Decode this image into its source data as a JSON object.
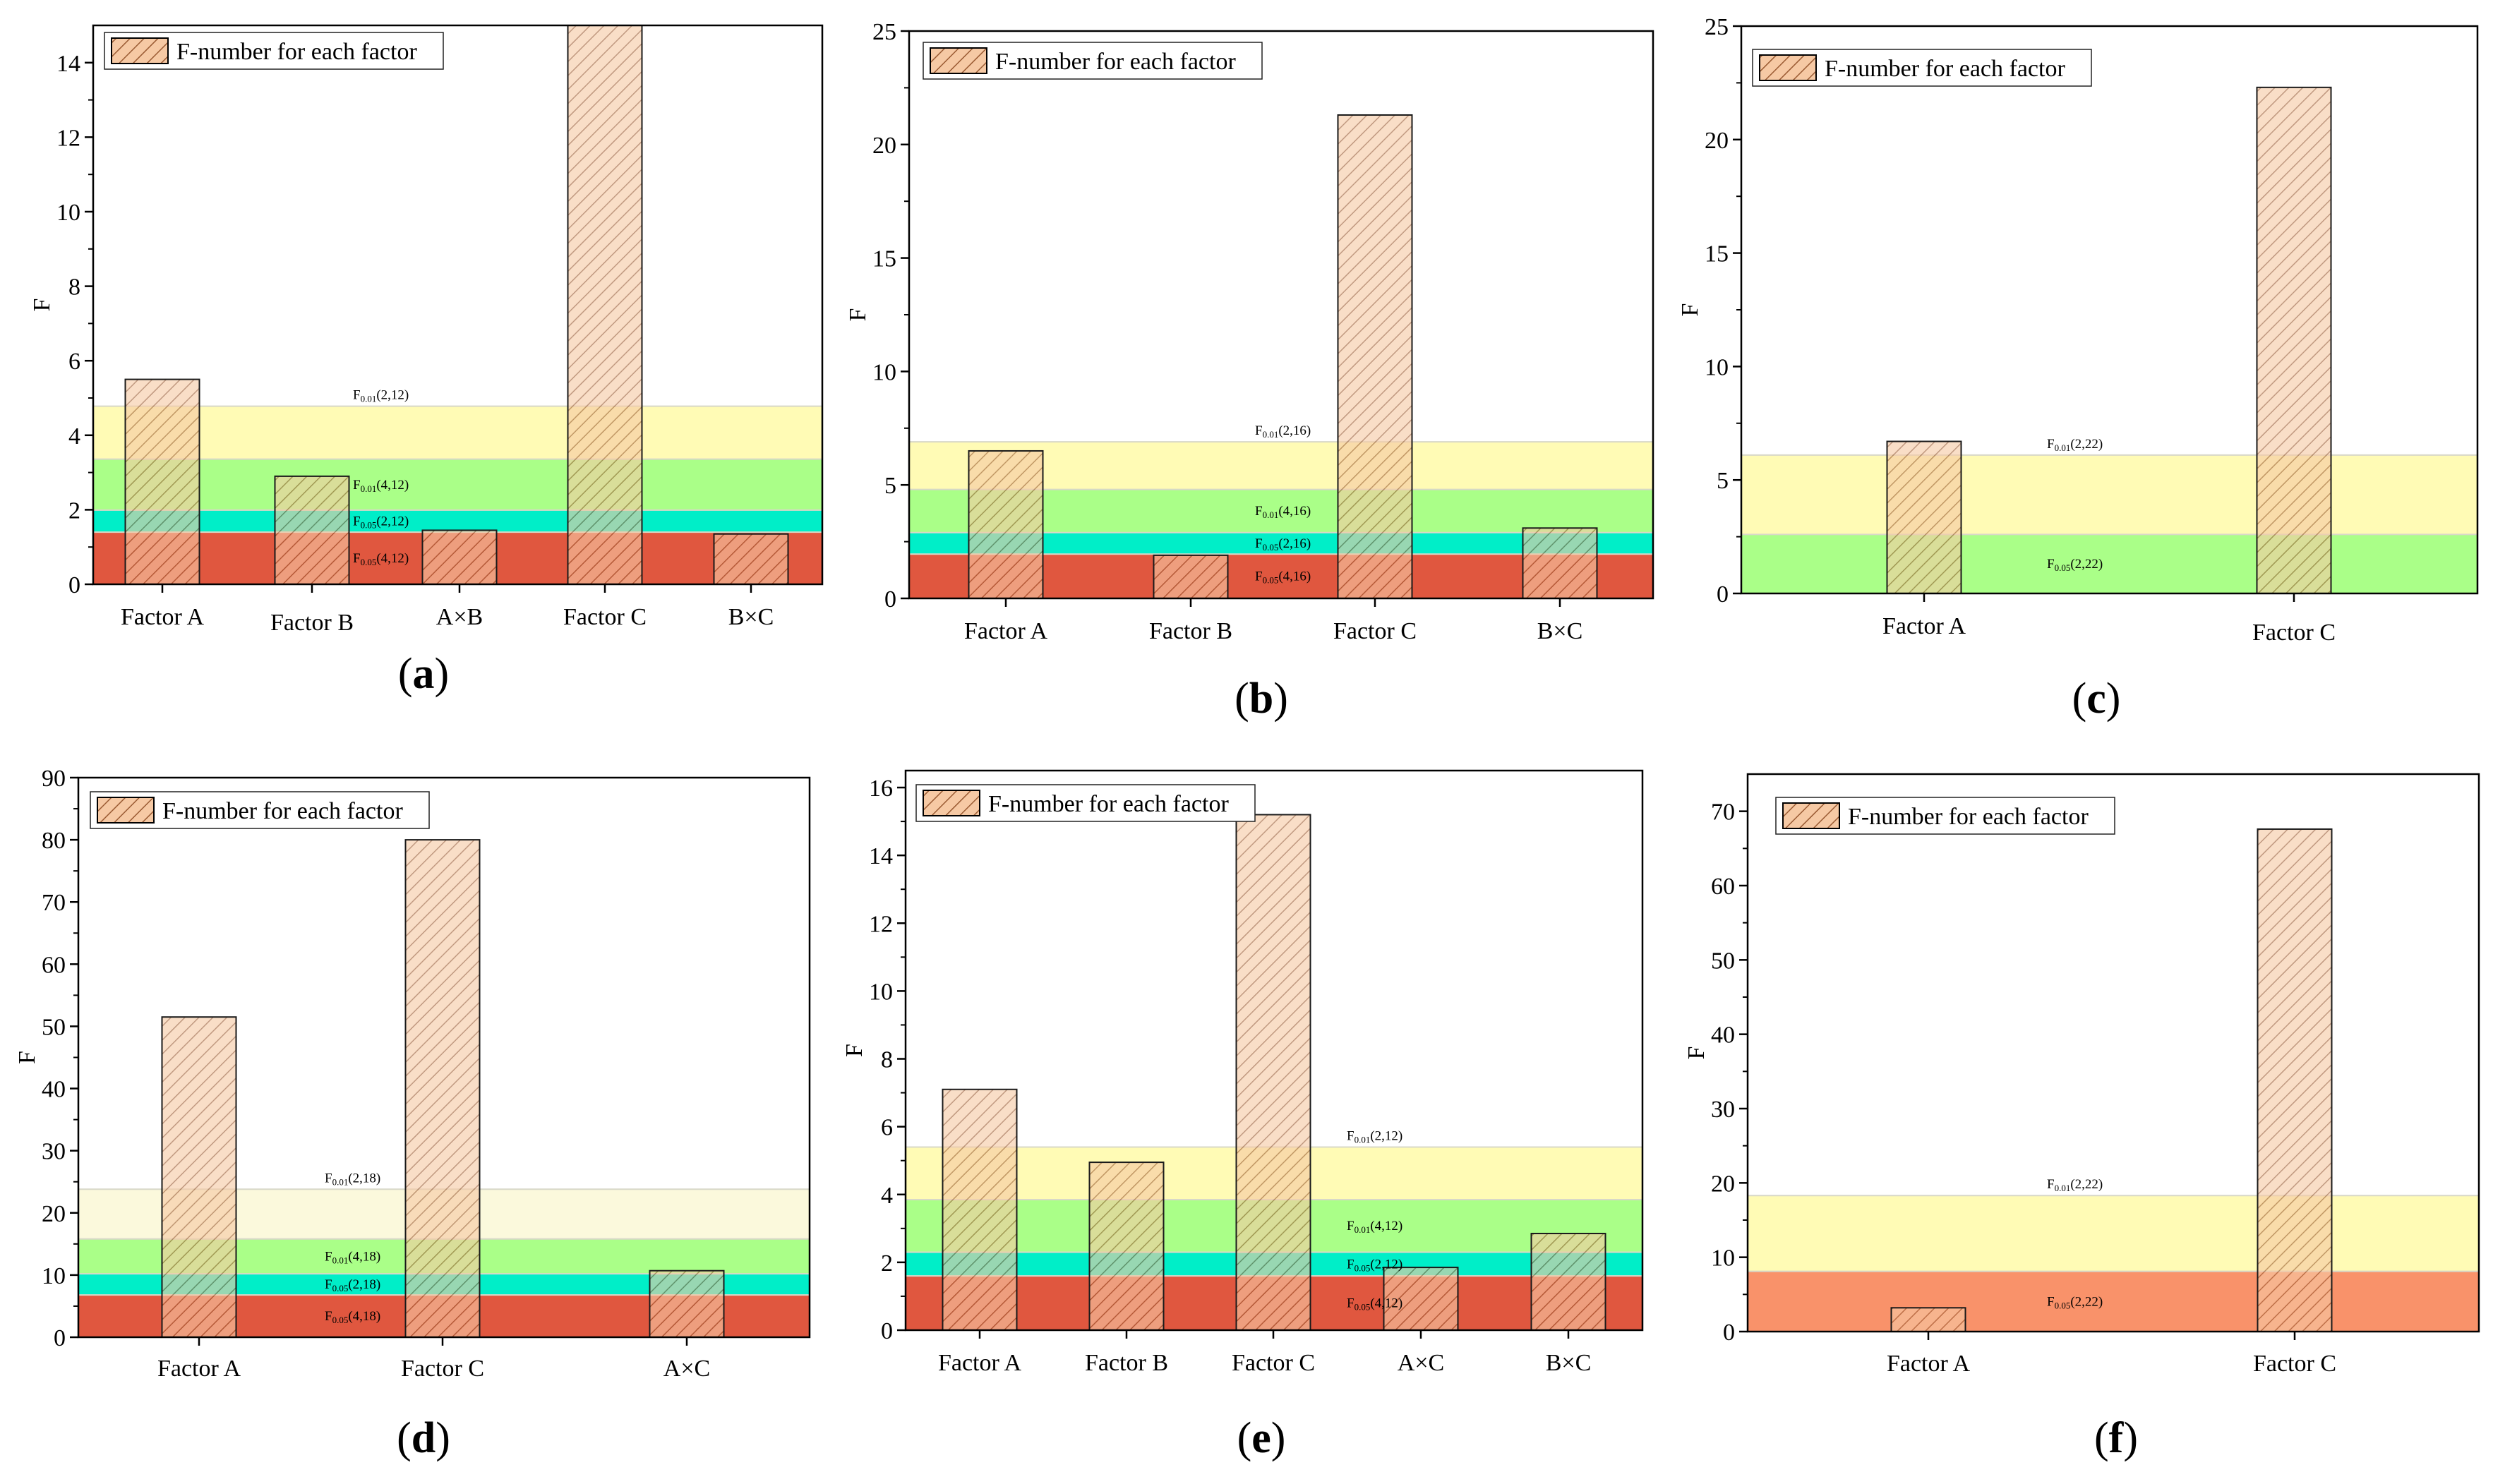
{
  "legend_label": "F-number for each factor",
  "colors": {
    "bar_fill": "#f6c9a4",
    "bar_stroke": "#1a1a1a",
    "hatch": "#a0522d",
    "band_top": "#fffbb5",
    "band_mid": "#aaff88",
    "band_teal": "#00eec8",
    "band_red": "#e0573f",
    "band_red_f": "#f9926a"
  },
  "chart_data": [
    {
      "type": "bar",
      "panel_label": "a",
      "ylabel": "F",
      "ylim": [
        0,
        15
      ],
      "yticks": [
        0,
        2,
        4,
        6,
        8,
        10,
        12,
        14
      ],
      "categories": [
        "Factor A",
        "Factor B",
        "A×B",
        "Factor C",
        "B×C"
      ],
      "values": [
        5.5,
        2.9,
        1.45,
        15.0,
        1.35
      ],
      "thresholds": [
        {
          "label": "F",
          "sub": "0.01",
          "args": "(2,12)",
          "value": 4.78
        },
        {
          "label": "F",
          "sub": "0.01",
          "args": "(4,12)",
          "value": 3.36
        },
        {
          "label": "F",
          "sub": "0.05",
          "args": "(2,12)",
          "value": 1.99
        },
        {
          "label": "F",
          "sub": "0.05",
          "args": "(4,12)",
          "value": 1.4
        }
      ]
    },
    {
      "type": "bar",
      "panel_label": "b",
      "ylabel": "F",
      "ylim": [
        0,
        25
      ],
      "yticks": [
        0,
        5,
        10,
        15,
        20,
        25
      ],
      "categories": [
        "Factor A",
        "Factor B",
        "Factor C",
        "B×C"
      ],
      "values": [
        6.5,
        1.9,
        21.3,
        3.1
      ],
      "thresholds": [
        {
          "label": "F",
          "sub": "0.01",
          "args": "(2,16)",
          "value": 6.9
        },
        {
          "label": "F",
          "sub": "0.01",
          "args": "(4,16)",
          "value": 4.8
        },
        {
          "label": "F",
          "sub": "0.05",
          "args": "(2,16)",
          "value": 2.9
        },
        {
          "label": "F",
          "sub": "0.05",
          "args": "(4,16)",
          "value": 1.95
        }
      ]
    },
    {
      "type": "bar",
      "panel_label": "c",
      "ylabel": "F",
      "ylim": [
        0,
        25
      ],
      "yticks": [
        0,
        5,
        10,
        15,
        20,
        25
      ],
      "categories": [
        "Factor A",
        "Factor C"
      ],
      "values": [
        6.7,
        22.3
      ],
      "thresholds": [
        {
          "label": "F",
          "sub": "0.01",
          "args": "(2,22)",
          "value": 6.1
        },
        {
          "label": "F",
          "sub": "0.05",
          "args": "(2,22)",
          "value": 2.6
        }
      ]
    },
    {
      "type": "bar",
      "panel_label": "d",
      "ylabel": "F",
      "ylim": [
        0,
        90
      ],
      "yticks": [
        0,
        10,
        20,
        30,
        40,
        50,
        60,
        70,
        80,
        90
      ],
      "categories": [
        "Factor A",
        "Factor C",
        "A×C"
      ],
      "values": [
        51.5,
        80.0,
        10.7
      ],
      "thresholds": [
        {
          "label": "F",
          "sub": "0.01",
          "args": "(2,18)",
          "value": 23.8
        },
        {
          "label": "F",
          "sub": "0.01",
          "args": "(4,18)",
          "value": 15.8
        },
        {
          "label": "F",
          "sub": "0.05",
          "args": "(2,18)",
          "value": 10.2
        },
        {
          "label": "F",
          "sub": "0.05",
          "args": "(4,18)",
          "value": 6.8
        }
      ]
    },
    {
      "type": "bar",
      "panel_label": "e",
      "ylabel": "F",
      "ylim": [
        0,
        16.5
      ],
      "yticks": [
        0,
        2,
        4,
        6,
        8,
        10,
        12,
        14,
        16
      ],
      "categories": [
        "Factor A",
        "Factor B",
        "Factor C",
        "A×C",
        "B×C"
      ],
      "values": [
        7.1,
        4.95,
        15.2,
        1.85,
        2.85
      ],
      "thresholds": [
        {
          "label": "F",
          "sub": "0.01",
          "args": "(2,12)",
          "value": 5.4
        },
        {
          "label": "F",
          "sub": "0.01",
          "args": "(4,12)",
          "value": 3.85
        },
        {
          "label": "F",
          "sub": "0.05",
          "args": "(2,12)",
          "value": 2.3
        },
        {
          "label": "F",
          "sub": "0.05",
          "args": "(4,12)",
          "value": 1.6
        }
      ]
    },
    {
      "type": "bar",
      "panel_label": "f",
      "ylabel": "F",
      "ylim": [
        0,
        75
      ],
      "yticks": [
        0,
        10,
        20,
        30,
        40,
        50,
        60,
        70
      ],
      "categories": [
        "Factor A",
        "Factor C"
      ],
      "values": [
        3.2,
        67.6
      ],
      "thresholds": [
        {
          "label": "F",
          "sub": "0.01",
          "args": "(2,22)",
          "value": 18.3
        },
        {
          "label": "F",
          "sub": "0.05",
          "args": "(2,22)",
          "value": 8.1
        }
      ]
    }
  ]
}
